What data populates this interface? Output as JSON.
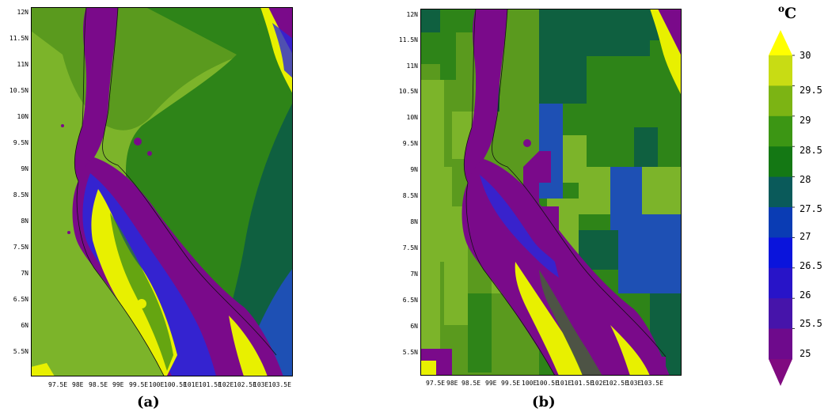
{
  "map_a": {
    "caption": "(a)",
    "y_labels": [
      "12N",
      "11.5N",
      "11N",
      "10.5N",
      "10N",
      "9.5N",
      "9N",
      "8.5N",
      "8N",
      "7.5N",
      "7N",
      "6.5N",
      "6N",
      "5.5N"
    ],
    "x_labels": [
      "97.5E",
      "98E",
      "98.5E",
      "99E",
      "99.5E",
      "100E",
      "100.5E",
      "101E",
      "101.5E",
      "102E",
      "102.5E",
      "103E",
      "103.5E"
    ]
  },
  "map_b": {
    "caption": "(b)",
    "y_labels": [
      "12N",
      "11.5N",
      "11N",
      "10.5N",
      "10N",
      "9.5N",
      "9N",
      "8.5N",
      "8N",
      "7.5N",
      "7N",
      "6.5N",
      "6N",
      "5.5N"
    ],
    "x_labels": [
      "97.5E",
      "98E",
      "98.5E",
      "99E",
      "99.5E",
      "100E",
      "100.5E",
      "101E",
      "101.5E",
      "102E",
      "102.5E",
      "103E",
      "103.5E"
    ]
  },
  "colorbar": {
    "unit": "oC",
    "levels": [
      "30",
      "29.5",
      "29",
      "28.5",
      "28",
      "27.5",
      "27",
      "26.5",
      "26",
      "25.5",
      "25"
    ],
    "colors": [
      "#ffff00",
      "#c8dc14",
      "#7cb414",
      "#3c9614",
      "#147814",
      "#0a5a5a",
      "#0a3cb4",
      "#0a14dc",
      "#2814c8",
      "#4614aa",
      "#6e0a8c",
      "#800a80"
    ]
  },
  "palette": {
    "sea_light": "#7cb42a",
    "sea_mid": "#5a9a1e",
    "sea_dark": "#2e8418",
    "sea_teal": "#0f6040",
    "sea_blue": "#1e50b4",
    "land_purple": "#7a0a8a",
    "coast_yellow": "#e8f000",
    "coast_blue": "#2828dc"
  }
}
